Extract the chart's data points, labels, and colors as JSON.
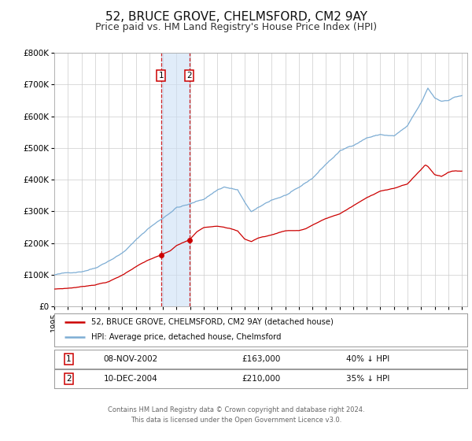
{
  "title": "52, BRUCE GROVE, CHELMSFORD, CM2 9AY",
  "subtitle": "Price paid vs. HM Land Registry's House Price Index (HPI)",
  "title_fontsize": 11,
  "subtitle_fontsize": 9,
  "bg_color": "#ffffff",
  "plot_bg_color": "#ffffff",
  "grid_color": "#cccccc",
  "hpi_color": "#7dadd4",
  "price_color": "#cc0000",
  "sale1_date": 2002.86,
  "sale1_price": 163000,
  "sale2_date": 2004.94,
  "sale2_price": 210000,
  "legend_line1": "52, BRUCE GROVE, CHELMSFORD, CM2 9AY (detached house)",
  "legend_line2": "HPI: Average price, detached house, Chelmsford",
  "table_row1": [
    "1",
    "08-NOV-2002",
    "£163,000",
    "40% ↓ HPI"
  ],
  "table_row2": [
    "2",
    "10-DEC-2004",
    "£210,000",
    "35% ↓ HPI"
  ],
  "footer_line1": "Contains HM Land Registry data © Crown copyright and database right 2024.",
  "footer_line2": "This data is licensed under the Open Government Licence v3.0.",
  "ylim": [
    0,
    800000
  ],
  "xmin": 1995.0,
  "xmax": 2025.4
}
